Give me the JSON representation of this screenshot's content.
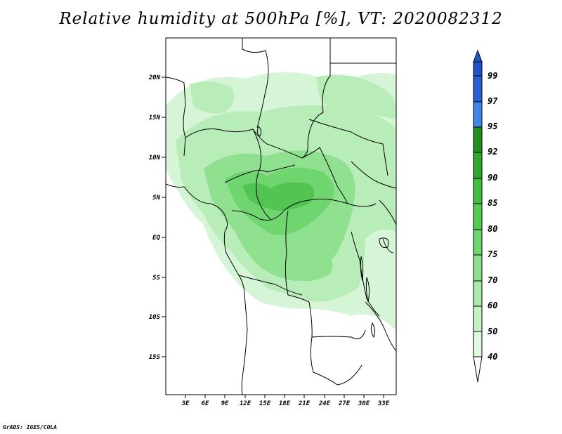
{
  "title": "Relative humidity at 500hPa [%], VT: 2020082312",
  "credit": "GrADS: IGES/COLA",
  "map": {
    "lat_ticks": [
      "20N",
      "15N",
      "10N",
      "5N",
      "EQ",
      "5S",
      "10S",
      "15S"
    ],
    "lon_ticks": [
      "3E",
      "6E",
      "9E",
      "12E",
      "15E",
      "18E",
      "21E",
      "24E",
      "27E",
      "30E",
      "33E"
    ]
  },
  "colorbar": {
    "levels": [
      "99",
      "97",
      "95",
      "92",
      "90",
      "85",
      "80",
      "75",
      "70",
      "60",
      "50",
      "40"
    ],
    "colors": [
      "#2a5fd0",
      "#3f86e6",
      "#1f8f1f",
      "#2ea82e",
      "#3fbf3f",
      "#52cc52",
      "#6bd66b",
      "#8ce08c",
      "#a8eaa8",
      "#c4f2c4",
      "#e0f8e0",
      "#ffffff"
    ],
    "top_color": "#1f55c8"
  }
}
